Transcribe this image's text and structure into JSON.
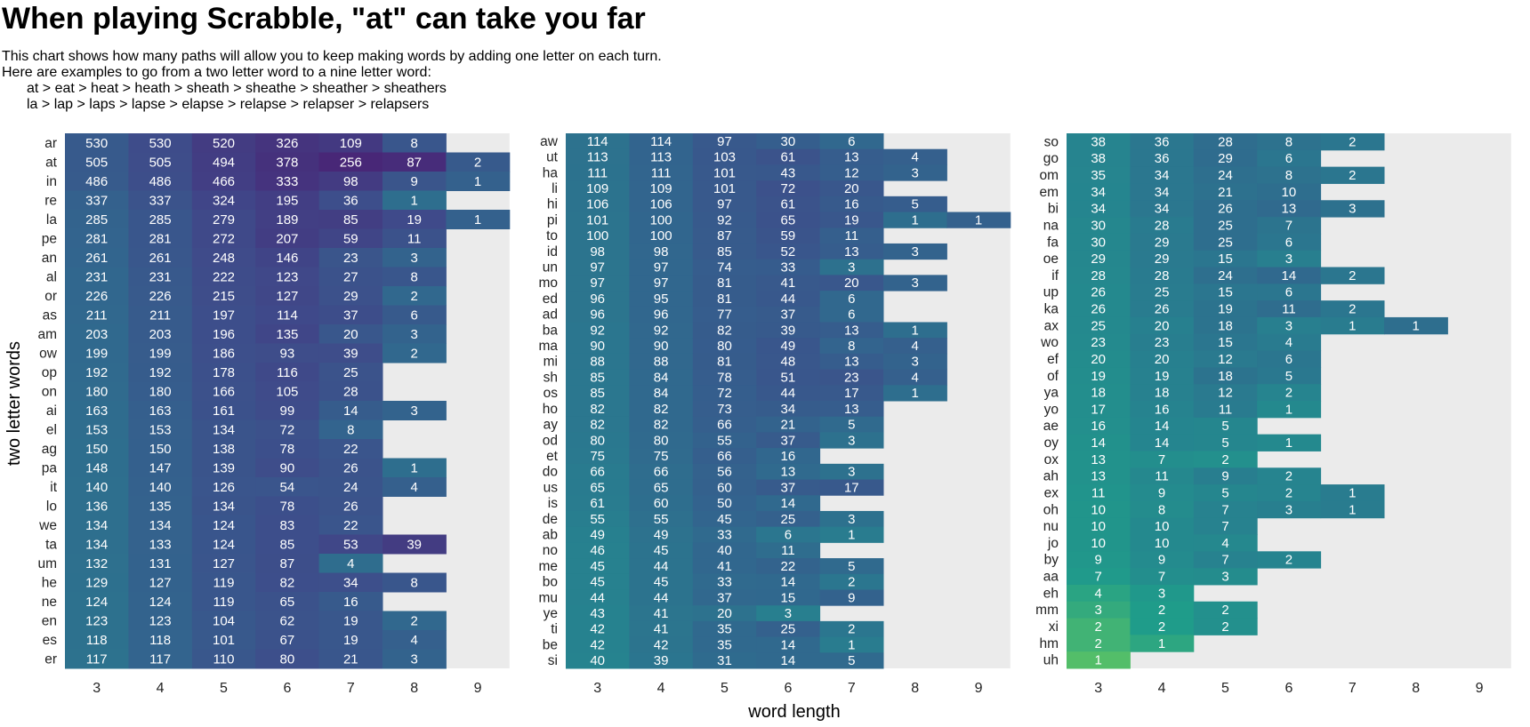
{
  "chart_data": {
    "type": "heatmap",
    "title": "When playing Scrabble, \"at\" can take you far",
    "subtitle": [
      "This chart shows how many paths will allow you to keep making words by adding one letter on each turn.",
      "Here are examples to go from a two letter word to a nine letter word:",
      "at > eat > heat > heath > sheath > sheathe > sheather > sheathers",
      "la > lap > laps > lapse > elapse > relapse > relapser > relapsers"
    ],
    "xlabel": "word length",
    "ylabel": "two letter words",
    "x": [
      3,
      4,
      5,
      6,
      7,
      8,
      9
    ],
    "color_scale": "viridis",
    "panel_background": "#ebebeb",
    "panels": [
      {
        "rows": [
          {
            "word": "ar",
            "values": [
              530,
              530,
              520,
              326,
              109,
              8
            ]
          },
          {
            "word": "at",
            "values": [
              505,
              505,
              494,
              378,
              256,
              87,
              2
            ]
          },
          {
            "word": "in",
            "values": [
              486,
              486,
              466,
              333,
              98,
              9,
              1
            ]
          },
          {
            "word": "re",
            "values": [
              337,
              337,
              324,
              195,
              36,
              1
            ]
          },
          {
            "word": "la",
            "values": [
              285,
              285,
              279,
              189,
              85,
              19,
              1
            ]
          },
          {
            "word": "pe",
            "values": [
              281,
              281,
              272,
              207,
              59,
              11
            ]
          },
          {
            "word": "an",
            "values": [
              261,
              261,
              248,
              146,
              23,
              3
            ]
          },
          {
            "word": "al",
            "values": [
              231,
              231,
              222,
              123,
              27,
              8
            ]
          },
          {
            "word": "or",
            "values": [
              226,
              226,
              215,
              127,
              29,
              2
            ]
          },
          {
            "word": "as",
            "values": [
              211,
              211,
              197,
              114,
              37,
              6
            ]
          },
          {
            "word": "am",
            "values": [
              203,
              203,
              196,
              135,
              20,
              3
            ]
          },
          {
            "word": "ow",
            "values": [
              199,
              199,
              186,
              93,
              39,
              2
            ]
          },
          {
            "word": "op",
            "values": [
              192,
              192,
              178,
              116,
              25
            ]
          },
          {
            "word": "on",
            "values": [
              180,
              180,
              166,
              105,
              28
            ]
          },
          {
            "word": "ai",
            "values": [
              163,
              163,
              161,
              99,
              14,
              3
            ]
          },
          {
            "word": "el",
            "values": [
              153,
              153,
              134,
              72,
              8
            ]
          },
          {
            "word": "ag",
            "values": [
              150,
              150,
              138,
              78,
              22
            ]
          },
          {
            "word": "pa",
            "values": [
              148,
              147,
              139,
              90,
              26,
              1
            ]
          },
          {
            "word": "it",
            "values": [
              140,
              140,
              126,
              54,
              24,
              4
            ]
          },
          {
            "word": "lo",
            "values": [
              136,
              135,
              134,
              78,
              26
            ]
          },
          {
            "word": "we",
            "values": [
              134,
              134,
              124,
              83,
              22
            ]
          },
          {
            "word": "ta",
            "values": [
              134,
              133,
              124,
              85,
              53,
              39
            ]
          },
          {
            "word": "um",
            "values": [
              132,
              131,
              127,
              87,
              4
            ]
          },
          {
            "word": "he",
            "values": [
              129,
              127,
              119,
              82,
              34,
              8
            ]
          },
          {
            "word": "ne",
            "values": [
              124,
              124,
              119,
              65,
              16
            ]
          },
          {
            "word": "en",
            "values": [
              123,
              123,
              104,
              62,
              19,
              2
            ]
          },
          {
            "word": "es",
            "values": [
              118,
              118,
              101,
              67,
              19,
              4
            ]
          },
          {
            "word": "er",
            "values": [
              117,
              117,
              110,
              80,
              21,
              3
            ]
          }
        ]
      },
      {
        "rows": [
          {
            "word": "aw",
            "values": [
              114,
              114,
              97,
              30,
              6
            ]
          },
          {
            "word": "ut",
            "values": [
              113,
              113,
              103,
              61,
              13,
              4
            ]
          },
          {
            "word": "ha",
            "values": [
              111,
              111,
              101,
              43,
              12,
              3
            ]
          },
          {
            "word": "li",
            "values": [
              109,
              109,
              101,
              72,
              20
            ]
          },
          {
            "word": "hi",
            "values": [
              106,
              106,
              97,
              61,
              16,
              5
            ]
          },
          {
            "word": "pi",
            "values": [
              101,
              100,
              92,
              65,
              19,
              1,
              1
            ]
          },
          {
            "word": "to",
            "values": [
              100,
              100,
              87,
              59,
              11
            ]
          },
          {
            "word": "id",
            "values": [
              98,
              98,
              85,
              52,
              13,
              3
            ]
          },
          {
            "word": "un",
            "values": [
              97,
              97,
              74,
              33,
              3
            ]
          },
          {
            "word": "mo",
            "values": [
              97,
              97,
              81,
              41,
              20,
              3
            ]
          },
          {
            "word": "ed",
            "values": [
              96,
              95,
              81,
              44,
              6
            ]
          },
          {
            "word": "ad",
            "values": [
              96,
              96,
              77,
              37,
              6
            ]
          },
          {
            "word": "ba",
            "values": [
              92,
              92,
              82,
              39,
              13,
              1
            ]
          },
          {
            "word": "ma",
            "values": [
              90,
              90,
              80,
              49,
              8,
              4
            ]
          },
          {
            "word": "mi",
            "values": [
              88,
              88,
              81,
              48,
              13,
              3
            ]
          },
          {
            "word": "sh",
            "values": [
              85,
              84,
              78,
              51,
              23,
              4
            ]
          },
          {
            "word": "os",
            "values": [
              85,
              84,
              72,
              44,
              17,
              1
            ]
          },
          {
            "word": "ho",
            "values": [
              82,
              82,
              73,
              34,
              13
            ]
          },
          {
            "word": "ay",
            "values": [
              82,
              82,
              66,
              21,
              5
            ]
          },
          {
            "word": "od",
            "values": [
              80,
              80,
              55,
              37,
              3
            ]
          },
          {
            "word": "et",
            "values": [
              75,
              75,
              66,
              16
            ]
          },
          {
            "word": "do",
            "values": [
              66,
              66,
              56,
              13,
              3
            ]
          },
          {
            "word": "us",
            "values": [
              65,
              65,
              60,
              37,
              17
            ]
          },
          {
            "word": "is",
            "values": [
              61,
              60,
              50,
              14
            ]
          },
          {
            "word": "de",
            "values": [
              55,
              55,
              45,
              25,
              3
            ]
          },
          {
            "word": "ab",
            "values": [
              49,
              49,
              33,
              6,
              1
            ]
          },
          {
            "word": "no",
            "values": [
              46,
              45,
              40,
              11
            ]
          },
          {
            "word": "me",
            "values": [
              45,
              44,
              41,
              22,
              5
            ]
          },
          {
            "word": "bo",
            "values": [
              45,
              45,
              33,
              14,
              2
            ]
          },
          {
            "word": "mu",
            "values": [
              44,
              44,
              37,
              15,
              9
            ]
          },
          {
            "word": "ye",
            "values": [
              43,
              41,
              20,
              3
            ]
          },
          {
            "word": "ti",
            "values": [
              42,
              41,
              35,
              25,
              2
            ]
          },
          {
            "word": "be",
            "values": [
              42,
              42,
              35,
              14,
              1
            ]
          },
          {
            "word": "si",
            "values": [
              40,
              39,
              31,
              14,
              5
            ]
          }
        ]
      },
      {
        "rows": [
          {
            "word": "so",
            "values": [
              38,
              36,
              28,
              8,
              2
            ]
          },
          {
            "word": "go",
            "values": [
              38,
              36,
              29,
              6
            ]
          },
          {
            "word": "om",
            "values": [
              35,
              34,
              24,
              8,
              2
            ]
          },
          {
            "word": "em",
            "values": [
              34,
              34,
              21,
              10
            ]
          },
          {
            "word": "bi",
            "values": [
              34,
              34,
              26,
              13,
              3
            ]
          },
          {
            "word": "na",
            "values": [
              30,
              28,
              25,
              7
            ]
          },
          {
            "word": "fa",
            "values": [
              30,
              29,
              25,
              6
            ]
          },
          {
            "word": "oe",
            "values": [
              29,
              29,
              15,
              3
            ]
          },
          {
            "word": "if",
            "values": [
              28,
              28,
              24,
              14,
              2
            ]
          },
          {
            "word": "up",
            "values": [
              26,
              25,
              15,
              6
            ]
          },
          {
            "word": "ka",
            "values": [
              26,
              26,
              19,
              11,
              2
            ]
          },
          {
            "word": "ax",
            "values": [
              25,
              20,
              18,
              3,
              1,
              1
            ]
          },
          {
            "word": "wo",
            "values": [
              23,
              23,
              15,
              4
            ]
          },
          {
            "word": "ef",
            "values": [
              20,
              20,
              12,
              6
            ]
          },
          {
            "word": "of",
            "values": [
              19,
              19,
              18,
              5
            ]
          },
          {
            "word": "ya",
            "values": [
              18,
              18,
              12,
              2
            ]
          },
          {
            "word": "yo",
            "values": [
              17,
              16,
              11,
              1
            ]
          },
          {
            "word": "ae",
            "values": [
              16,
              14,
              5
            ]
          },
          {
            "word": "oy",
            "values": [
              14,
              14,
              5,
              1
            ]
          },
          {
            "word": "ox",
            "values": [
              13,
              7,
              2
            ]
          },
          {
            "word": "ah",
            "values": [
              13,
              11,
              9,
              2
            ]
          },
          {
            "word": "ex",
            "values": [
              11,
              9,
              5,
              2,
              1
            ]
          },
          {
            "word": "oh",
            "values": [
              10,
              8,
              7,
              3,
              1
            ]
          },
          {
            "word": "nu",
            "values": [
              10,
              10,
              7
            ]
          },
          {
            "word": "jo",
            "values": [
              10,
              10,
              4
            ]
          },
          {
            "word": "by",
            "values": [
              9,
              9,
              7,
              2
            ]
          },
          {
            "word": "aa",
            "values": [
              7,
              7,
              3
            ]
          },
          {
            "word": "eh",
            "values": [
              4,
              3
            ]
          },
          {
            "word": "mm",
            "values": [
              3,
              2,
              2
            ]
          },
          {
            "word": "xi",
            "values": [
              2,
              2,
              2
            ]
          },
          {
            "word": "hm",
            "values": [
              2,
              1
            ]
          },
          {
            "word": "uh",
            "values": [
              1
            ]
          }
        ]
      }
    ]
  }
}
